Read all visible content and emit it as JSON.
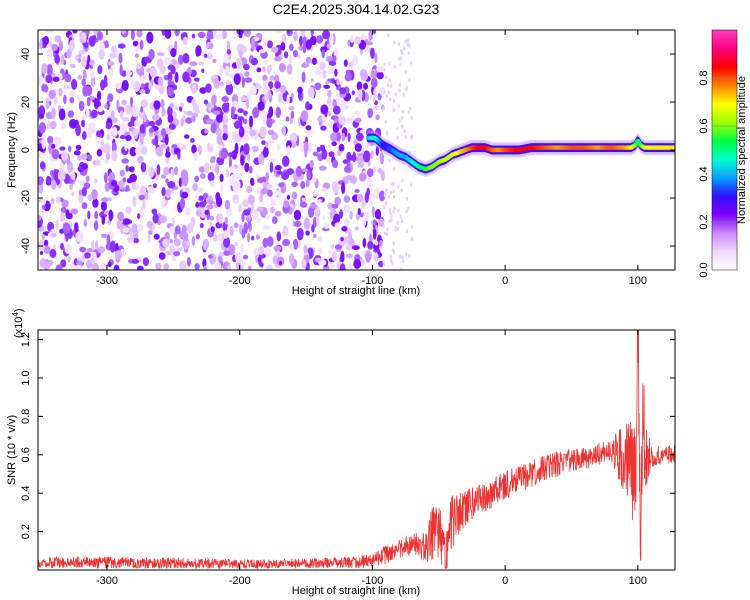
{
  "title": "C2E4.2025.304.14.02.G23",
  "chart_data": [
    {
      "type": "heatmap",
      "xlabel": "Height of straight line (km)",
      "ylabel": "Frequency (Hz)",
      "xlim": [
        -352,
        128
      ],
      "ylim": [
        -50,
        50
      ],
      "xticks": [
        -300,
        -200,
        -100,
        0,
        100
      ],
      "xtick_labels": [
        "-300",
        "-200",
        "-100",
        "0",
        "100"
      ],
      "yticks": [
        -40,
        -20,
        0,
        20,
        40
      ],
      "ytick_labels": [
        "-40",
        "-20",
        "0",
        "20",
        "40"
      ],
      "noise_region_x": [
        -352,
        -92
      ],
      "signal_track": {
        "x": [
          -103,
          -98,
          -92,
          -85,
          -80,
          -75,
          -70,
          -65,
          -60,
          -55,
          -50,
          -45,
          -40,
          -35,
          -30,
          -25,
          -20,
          -15,
          -10,
          -5,
          0,
          10,
          20,
          30,
          40,
          50,
          60,
          70,
          80,
          90,
          95,
          98,
          100,
          102,
          105,
          110,
          115,
          120,
          128
        ],
        "frequency": [
          5,
          5,
          2,
          0,
          -2,
          -3,
          -5,
          -7,
          -8,
          -7,
          -5,
          -4,
          -2,
          -1,
          0,
          1,
          1,
          1,
          0,
          0,
          0,
          0,
          1,
          1,
          1,
          1,
          1,
          1,
          1,
          1,
          1,
          2,
          4,
          2,
          1,
          1,
          1,
          1,
          1
        ],
        "amplitude": [
          0.4,
          0.5,
          0.3,
          0.35,
          0.4,
          0.4,
          0.45,
          0.5,
          0.55,
          0.6,
          0.6,
          0.65,
          0.65,
          0.7,
          0.75,
          0.8,
          0.85,
          0.85,
          0.8,
          0.75,
          0.8,
          0.85,
          0.85,
          0.8,
          0.75,
          0.8,
          0.8,
          0.75,
          0.8,
          0.75,
          0.7,
          0.6,
          0.5,
          0.55,
          0.65,
          0.7,
          0.7,
          0.7,
          0.7
        ]
      },
      "colorbar": {
        "label": "Normalized spectral amplitude",
        "range": [
          0,
          1
        ],
        "ticks": [
          0,
          0.2,
          0.4,
          0.6,
          0.8
        ],
        "tick_labels": [
          "0.0",
          "0.2",
          "0.4",
          "0.6",
          "0.8"
        ],
        "colormap": [
          "#ffffff",
          "#f0d8ff",
          "#cc88ff",
          "#8000ff",
          "#3010ff",
          "#00a0ff",
          "#00ffcc",
          "#00ff40",
          "#a0ff00",
          "#ffff00",
          "#ff8000",
          "#ff0000",
          "#ff0080",
          "#ff40c0"
        ]
      }
    },
    {
      "type": "line",
      "xlabel": "Height of straight line (km)",
      "ylabel": "SNR (10 * v/v)",
      "scale_label": "(x10",
      "scale_exponent": "4",
      "scale_close": ")",
      "xlim": [
        -352,
        128
      ],
      "ylim": [
        0,
        1.25
      ],
      "xticks": [
        -300,
        -200,
        -100,
        0,
        100
      ],
      "xtick_labels": [
        "-300",
        "-200",
        "-100",
        "0",
        "100"
      ],
      "yticks": [
        0.2,
        0.4,
        0.6,
        0.8,
        1.0,
        1.2
      ],
      "ytick_labels": [
        "0.2",
        "0.4",
        "0.6",
        "0.8",
        "1.0",
        "1.2"
      ],
      "series": [
        {
          "color": "#ee3333",
          "x": [
            -352,
            -300,
            -250,
            -200,
            -150,
            -110,
            -100,
            -90,
            -80,
            -70,
            -60,
            -55,
            -50,
            -45,
            -40,
            -35,
            -30,
            -20,
            -10,
            0,
            10,
            20,
            30,
            40,
            50,
            60,
            70,
            80,
            90,
            95,
            98,
            100,
            102,
            104,
            106,
            110,
            115,
            120,
            128
          ],
          "y": [
            0.04,
            0.04,
            0.035,
            0.03,
            0.035,
            0.04,
            0.05,
            0.08,
            0.11,
            0.13,
            0.12,
            0.2,
            0.18,
            0.11,
            0.24,
            0.28,
            0.32,
            0.36,
            0.4,
            0.44,
            0.47,
            0.5,
            0.53,
            0.55,
            0.57,
            0.58,
            0.6,
            0.62,
            0.6,
            0.58,
            0.45,
            1.25,
            0.1,
            0.8,
            0.6,
            0.58,
            0.6,
            0.6,
            0.6
          ],
          "noise_amplitude": [
            0.03,
            0.03,
            0.03,
            0.025,
            0.025,
            0.03,
            0.04,
            0.05,
            0.05,
            0.06,
            0.08,
            0.15,
            0.15,
            0.15,
            0.15,
            0.12,
            0.1,
            0.08,
            0.08,
            0.08,
            0.07,
            0.07,
            0.07,
            0.07,
            0.06,
            0.06,
            0.06,
            0.06,
            0.2,
            0.3,
            0.3,
            0.3,
            0.3,
            0.3,
            0.2,
            0.06,
            0.05,
            0.05,
            0.05
          ]
        }
      ]
    }
  ]
}
